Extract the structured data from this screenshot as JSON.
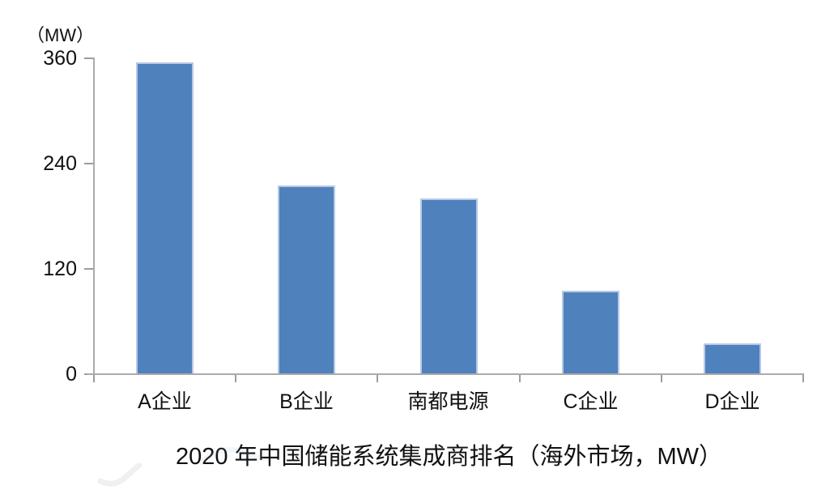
{
  "chart_data": {
    "type": "bar",
    "title": "2020 年中国储能系统集成商排名（海外市场，MW）",
    "unit_label": "（MW）",
    "categories": [
      "A企业",
      "B企业",
      "南都电源",
      "C企业",
      "D企业"
    ],
    "values": [
      355,
      215,
      200,
      95,
      35
    ],
    "xlabel": "",
    "ylabel": "",
    "ylim": [
      0,
      360
    ],
    "yticks": [
      0,
      120,
      240,
      360
    ],
    "grid": false,
    "legend": false,
    "colors": {
      "bar_fill": "#4f81bd",
      "bar_edge": "#b7c9e5",
      "axis": "#ababab",
      "tick": "#9c9c9c",
      "text": "#111111",
      "background": "#ffffff"
    }
  }
}
